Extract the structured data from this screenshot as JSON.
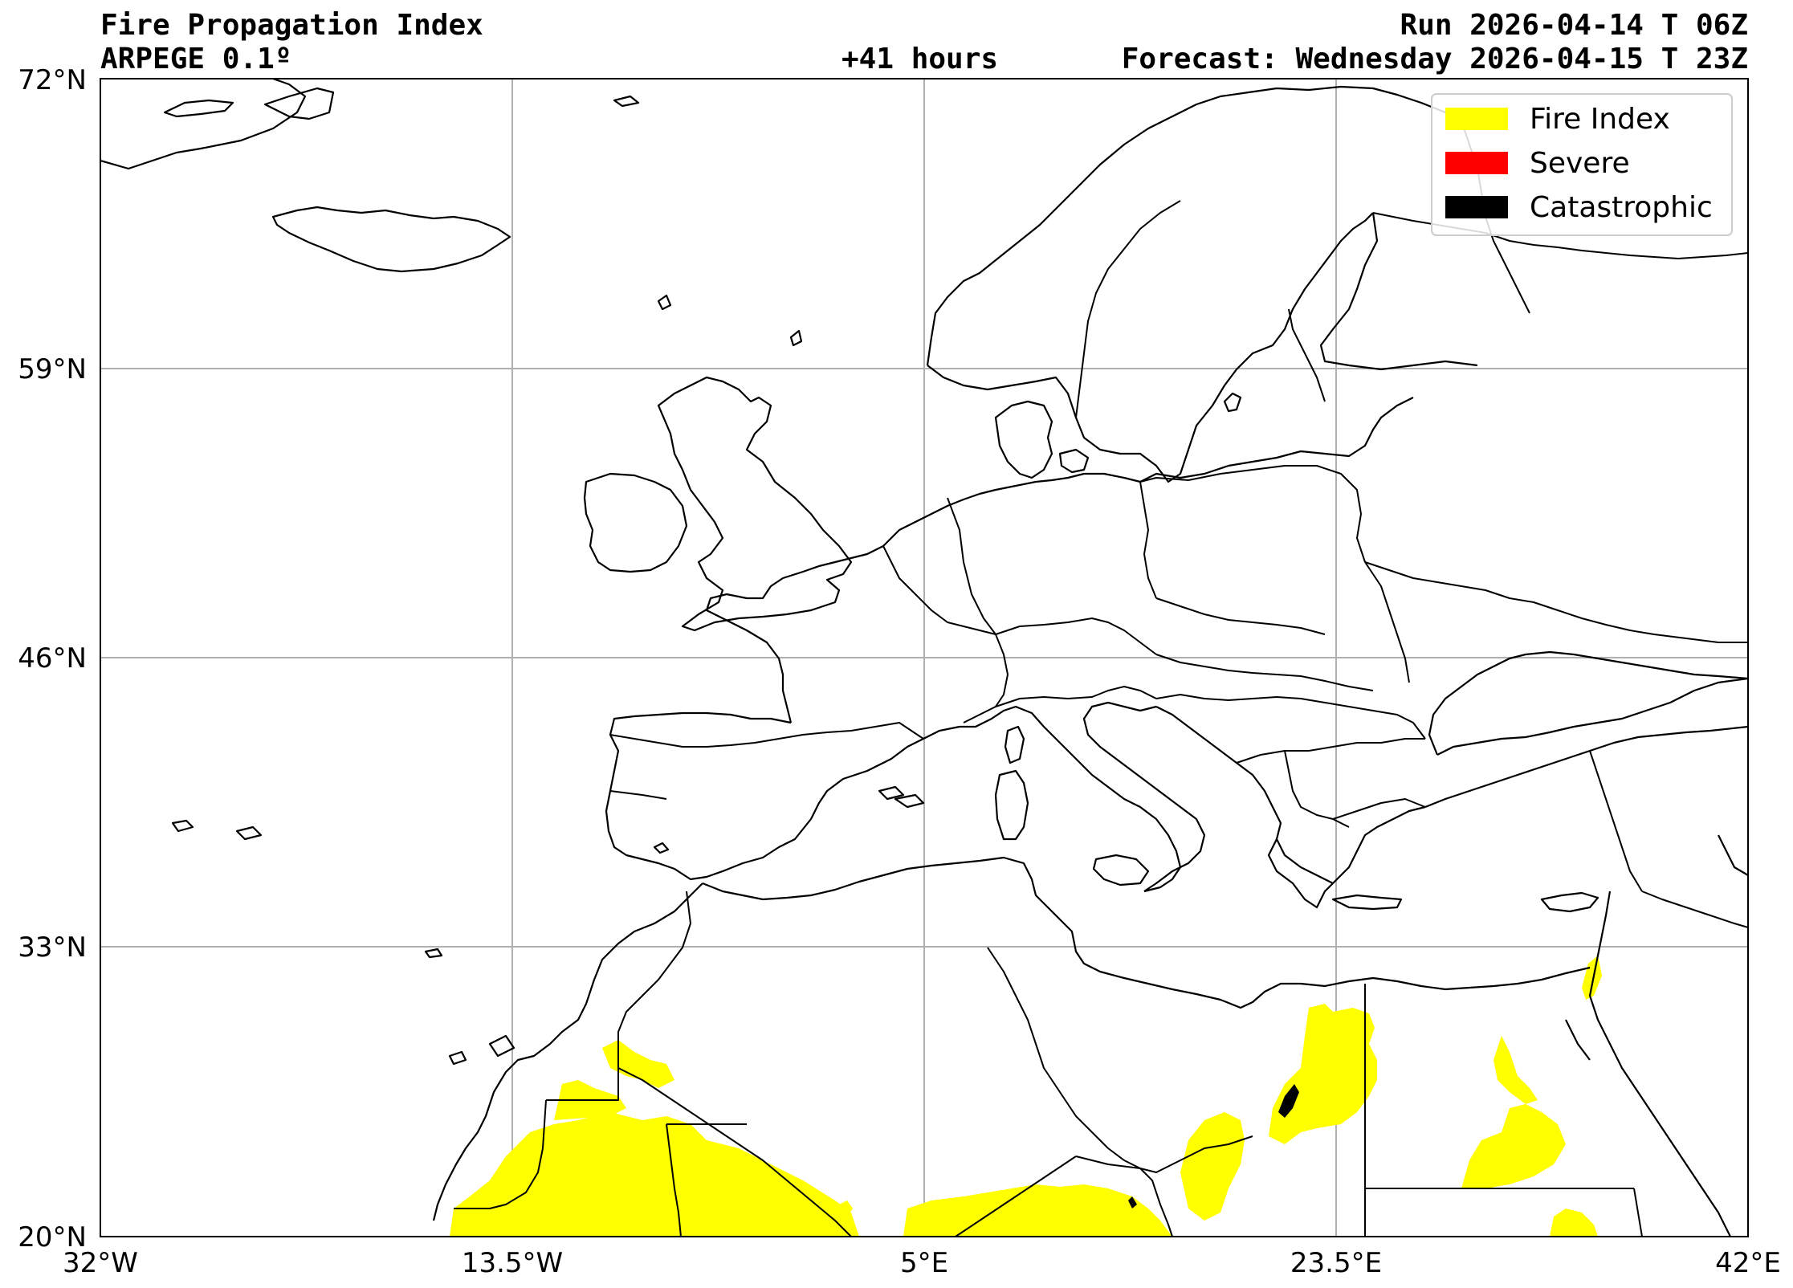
{
  "header": {
    "title": "Fire Propagation Index",
    "model": "ARPEGE 0.1º",
    "lead": "+41 hours",
    "run": "Run 2026-04-14 T 06Z",
    "forecast": "Forecast: Wednesday 2026-04-15 T 23Z"
  },
  "axes": {
    "lat_ticks": [
      {
        "value": 72,
        "label": "72°N"
      },
      {
        "value": 59,
        "label": "59°N"
      },
      {
        "value": 46,
        "label": "46°N"
      },
      {
        "value": 33,
        "label": "33°N"
      },
      {
        "value": 20,
        "label": "20°N"
      }
    ],
    "lon_ticks": [
      {
        "value": -32,
        "label": "32°W"
      },
      {
        "value": -13.5,
        "label": "13.5°W"
      },
      {
        "value": 5,
        "label": "5°E"
      },
      {
        "value": 23.5,
        "label": "23.5°E"
      },
      {
        "value": 42,
        "label": "42°E"
      }
    ],
    "lon_range": [
      -32,
      42
    ],
    "lat_range": [
      20,
      72
    ],
    "grid": true
  },
  "legend": {
    "placement": "top-right",
    "items": [
      {
        "label": "Fire Index",
        "color": "#ffff00"
      },
      {
        "label": "Severe",
        "color": "#ff0000"
      },
      {
        "label": "Catastrophic",
        "color": "#000000"
      }
    ]
  },
  "colors": {
    "fire_index": "#ffff00",
    "severe": "#ff0000",
    "catastrophic": "#000000"
  }
}
